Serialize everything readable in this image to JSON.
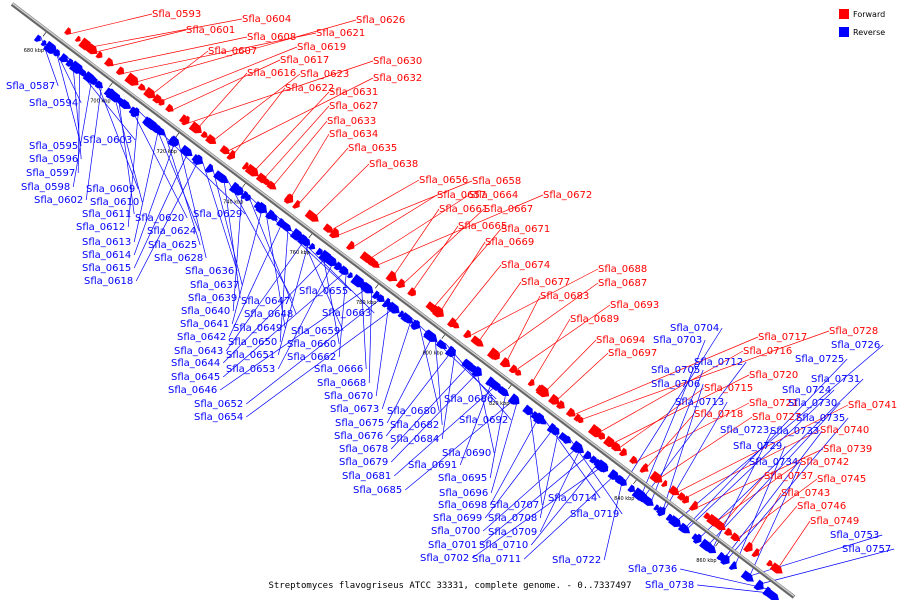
{
  "caption": "Streptomyces flavogriseus ATCC 33331, complete genome. - 0..7337497",
  "legend": [
    {
      "label": "Forward",
      "color": "#ff0000"
    },
    {
      "label": "Reverse",
      "color": "#0000ff"
    }
  ],
  "colors": {
    "forward": "#ff0000",
    "reverse": "#0000ff",
    "backbone": "#888888"
  },
  "ticks": [
    "680 kbp",
    "700 kbp",
    "720 kbp",
    "740 kbp",
    "760 kbp",
    "780 kbp",
    "800 kbp",
    "820 kbp",
    "840 kbp",
    "860 kbp"
  ],
  "forward_genes": [
    "Sfla_0593",
    "Sfla_0604",
    "Sfla_0601",
    "Sfla_0608",
    "Sfla_0621",
    "Sfla_0626",
    "Sfla_0607",
    "Sfla_0619",
    "Sfla_0617",
    "Sfla_0630",
    "Sfla_0616",
    "Sfla_0623",
    "Sfla_0632",
    "Sfla_0622",
    "Sfla_0631",
    "Sfla_0627",
    "Sfla_0633",
    "Sfla_0634",
    "Sfla_0635",
    "Sfla_0638",
    "Sfla_0656",
    "Sfla_0658",
    "Sfla_0657",
    "Sfla_0664",
    "Sfla_0672",
    "Sfla_0661",
    "Sfla_0667",
    "Sfla_0665",
    "Sfla_0671",
    "Sfla_0669",
    "Sfla_0674",
    "Sfla_0688",
    "Sfla_0677",
    "Sfla_0687",
    "Sfla_0683",
    "Sfla_0693",
    "Sfla_0689",
    "Sfla_0694",
    "Sfla_0697",
    "Sfla_0717",
    "Sfla_0728",
    "Sfla_0716",
    "Sfla_0720",
    "Sfla_0715",
    "Sfla_0721",
    "Sfla_0718",
    "Sfla_0727",
    "Sfla_0741",
    "Sfla_0740",
    "Sfla_0739",
    "Sfla_0742",
    "Sfla_0737",
    "Sfla_0745",
    "Sfla_0743",
    "Sfla_0746",
    "Sfla_0749"
  ],
  "reverse_genes": [
    "Sfla_0587",
    "Sfla_0594",
    "Sfla_0595",
    "Sfla_0603",
    "Sfla_0596",
    "Sfla_0597",
    "Sfla_0598",
    "Sfla_0609",
    "Sfla_0602",
    "Sfla_0610",
    "Sfla_0611",
    "Sfla_0620",
    "Sfla_0629",
    "Sfla_0612",
    "Sfla_0624",
    "Sfla_0613",
    "Sfla_0625",
    "Sfla_0614",
    "Sfla_0628",
    "Sfla_0615",
    "Sfla_0618",
    "Sfla_0636",
    "Sfla_0637",
    "Sfla_0639",
    "Sfla_0647",
    "Sfla_0655",
    "Sfla_0640",
    "Sfla_0648",
    "Sfla_0641",
    "Sfla_0649",
    "Sfla_0663",
    "Sfla_0642",
    "Sfla_0650",
    "Sfla_0659",
    "Sfla_0643",
    "Sfla_0651",
    "Sfla_0660",
    "Sfla_0644",
    "Sfla_0653",
    "Sfla_0662",
    "Sfla_0645",
    "Sfla_0666",
    "Sfla_0646",
    "Sfla_0668",
    "Sfla_0652",
    "Sfla_0670",
    "Sfla_0654",
    "Sfla_0686",
    "Sfla_0673",
    "Sfla_0680",
    "Sfla_0675",
    "Sfla_0682",
    "Sfla_0692",
    "Sfla_0676",
    "Sfla_0684",
    "Sfla_0678",
    "Sfla_0690",
    "Sfla_0679",
    "Sfla_0691",
    "Sfla_0681",
    "Sfla_0695",
    "Sfla_0685",
    "Sfla_0696",
    "Sfla_0707",
    "Sfla_0698",
    "Sfla_0714",
    "Sfla_0699",
    "Sfla_0708",
    "Sfla_0719",
    "Sfla_0700",
    "Sfla_0709",
    "Sfla_0701",
    "Sfla_0710",
    "Sfla_0702",
    "Sfla_0711",
    "Sfla_0722",
    "Sfla_0704",
    "Sfla_0703",
    "Sfla_0712",
    "Sfla_0705",
    "Sfla_0706",
    "Sfla_0713",
    "Sfla_0726",
    "Sfla_0725",
    "Sfla_0724",
    "Sfla_0731",
    "Sfla_0730",
    "Sfla_0723",
    "Sfla_0733",
    "Sfla_0735",
    "Sfla_0729",
    "Sfla_0734",
    "Sfla_0753",
    "Sfla_0757",
    "Sfla_0736",
    "Sfla_0738"
  ]
}
